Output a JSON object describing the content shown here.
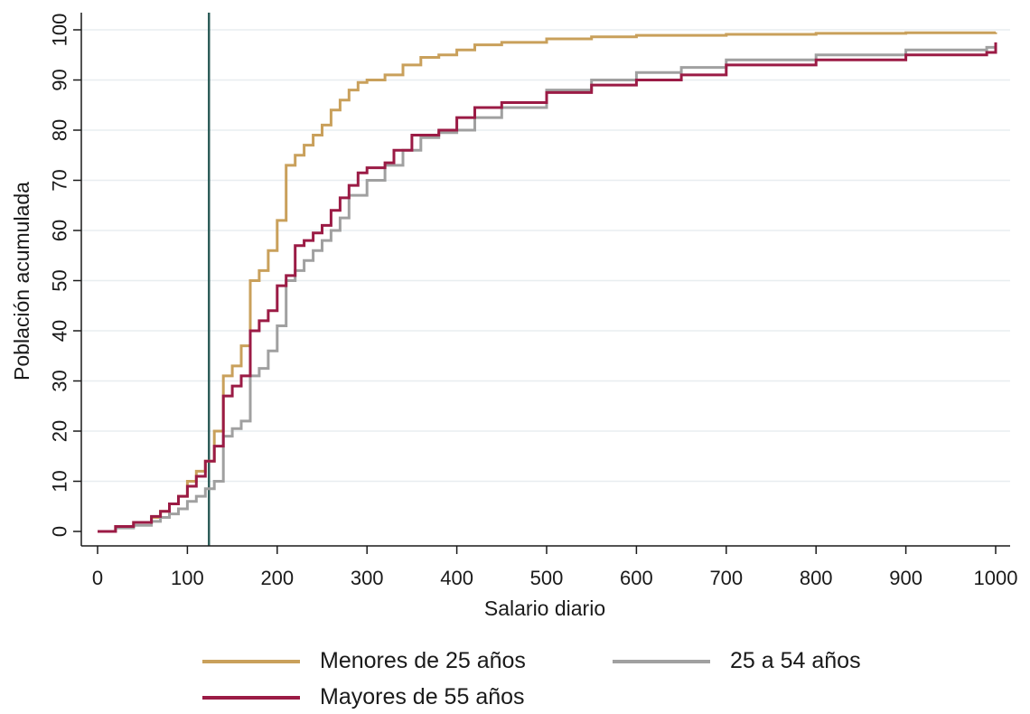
{
  "chart_data": {
    "type": "line",
    "xlabel": "Salario diario",
    "ylabel": "Población acumulada",
    "xlim": [
      0,
      1000
    ],
    "ylim": [
      0,
      100
    ],
    "xticks": [
      0,
      100,
      200,
      300,
      400,
      500,
      600,
      700,
      800,
      900,
      1000
    ],
    "yticks": [
      0,
      10,
      20,
      30,
      40,
      50,
      60,
      70,
      80,
      90,
      100
    ],
    "grid": "horizontal",
    "reference_line_x": 124,
    "legend_placement": "bottom",
    "series": [
      {
        "name": "Menores de 25 años",
        "color": "#c9a05b",
        "step": true,
        "x": [
          0,
          20,
          40,
          60,
          70,
          80,
          90,
          100,
          110,
          120,
          130,
          140,
          150,
          160,
          170,
          180,
          190,
          200,
          210,
          220,
          230,
          240,
          250,
          260,
          270,
          280,
          290,
          300,
          320,
          340,
          360,
          380,
          400,
          420,
          450,
          500,
          550,
          600,
          700,
          800,
          900,
          1000
        ],
        "y": [
          0,
          1,
          1.8,
          2.8,
          4,
          5.5,
          7,
          10,
          12,
          14,
          20,
          31,
          33,
          37,
          50,
          52,
          56,
          62,
          73,
          75,
          77,
          79,
          81,
          84,
          86,
          88,
          89.5,
          90,
          91,
          93,
          94.5,
          95,
          96,
          97,
          97.5,
          98.2,
          98.6,
          98.9,
          99.1,
          99.3,
          99.4,
          99.5
        ]
      },
      {
        "name": "25 a 54 años",
        "color": "#a0a0a0",
        "step": true,
        "x": [
          0,
          20,
          40,
          60,
          70,
          80,
          90,
          100,
          110,
          120,
          130,
          140,
          150,
          160,
          170,
          180,
          190,
          200,
          210,
          220,
          230,
          240,
          250,
          260,
          270,
          280,
          300,
          320,
          340,
          360,
          380,
          400,
          420,
          450,
          500,
          550,
          600,
          650,
          700,
          800,
          900,
          990,
          1000
        ],
        "y": [
          0,
          0.7,
          1.2,
          2,
          2.8,
          3.5,
          4.5,
          6,
          7,
          8.5,
          10,
          19,
          20.5,
          22,
          31,
          32.5,
          36,
          41,
          50,
          52,
          54,
          56,
          58,
          60,
          62.5,
          67,
          70,
          73,
          76,
          78.5,
          79.5,
          80,
          82.5,
          84.5,
          88,
          90,
          91.5,
          92.5,
          94,
          95,
          96,
          96.5,
          97
        ]
      },
      {
        "name": "Mayores de 55 años",
        "color": "#9b1b45",
        "step": true,
        "x": [
          0,
          20,
          40,
          60,
          70,
          80,
          90,
          100,
          110,
          120,
          130,
          140,
          150,
          160,
          170,
          180,
          190,
          200,
          210,
          220,
          230,
          240,
          250,
          260,
          270,
          280,
          290,
          300,
          320,
          330,
          350,
          380,
          400,
          420,
          450,
          500,
          550,
          600,
          650,
          700,
          800,
          900,
          990,
          1000
        ],
        "y": [
          0,
          1,
          1.8,
          3,
          4,
          5.5,
          7,
          9,
          11,
          14,
          17,
          27,
          29,
          31,
          40,
          42,
          44,
          49,
          51,
          57,
          58,
          59.5,
          61,
          64,
          66.5,
          69,
          71.5,
          72.5,
          73.5,
          76,
          79,
          80,
          82.5,
          84.5,
          85.5,
          87.5,
          89,
          90,
          91,
          93,
          94,
          95,
          95.5,
          97.5
        ]
      }
    ]
  }
}
